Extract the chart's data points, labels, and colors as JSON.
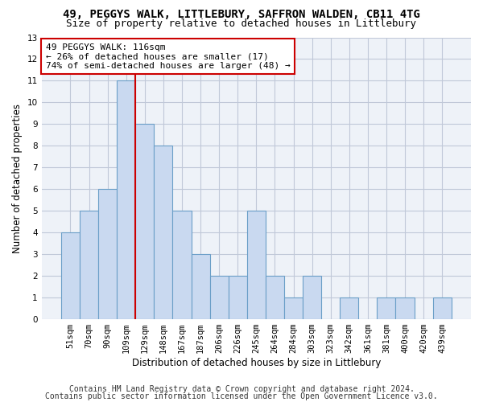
{
  "title": "49, PEGGYS WALK, LITTLEBURY, SAFFRON WALDEN, CB11 4TG",
  "subtitle": "Size of property relative to detached houses in Littlebury",
  "xlabel": "Distribution of detached houses by size in Littlebury",
  "ylabel": "Number of detached properties",
  "categories": [
    "51sqm",
    "70sqm",
    "90sqm",
    "109sqm",
    "129sqm",
    "148sqm",
    "167sqm",
    "187sqm",
    "206sqm",
    "226sqm",
    "245sqm",
    "264sqm",
    "284sqm",
    "303sqm",
    "323sqm",
    "342sqm",
    "361sqm",
    "381sqm",
    "400sqm",
    "420sqm",
    "439sqm"
  ],
  "values": [
    4,
    5,
    6,
    11,
    9,
    8,
    5,
    3,
    2,
    2,
    5,
    2,
    1,
    2,
    0,
    1,
    0,
    1,
    1,
    0,
    1
  ],
  "bar_color": "#c9d9f0",
  "bar_edge_color": "#6b9fc8",
  "grid_color": "#c0c8d8",
  "background_color": "#eef2f8",
  "annotation_line1": "49 PEGGYS WALK: 116sqm",
  "annotation_line2": "← 26% of detached houses are smaller (17)",
  "annotation_line3": "74% of semi-detached houses are larger (48) →",
  "annotation_box_color": "#ffffff",
  "annotation_box_edge": "#cc0000",
  "vline_color": "#cc0000",
  "vline_x": 3.5,
  "ylim": [
    0,
    13
  ],
  "yticks": [
    0,
    1,
    2,
    3,
    4,
    5,
    6,
    7,
    8,
    9,
    10,
    11,
    12,
    13
  ],
  "footer_line1": "Contains HM Land Registry data © Crown copyright and database right 2024.",
  "footer_line2": "Contains public sector information licensed under the Open Government Licence v3.0.",
  "title_fontsize": 10,
  "subtitle_fontsize": 9,
  "annotation_fontsize": 8,
  "axis_label_fontsize": 8.5,
  "tick_fontsize": 7.5,
  "footer_fontsize": 7
}
